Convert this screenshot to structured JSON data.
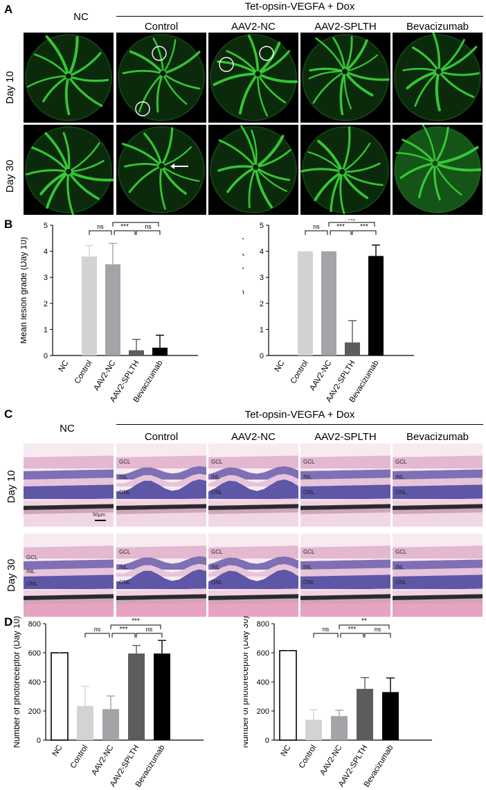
{
  "panels": {
    "a": "A",
    "b": "B",
    "c": "C",
    "d": "D"
  },
  "headers": {
    "nc": "NC",
    "group": "Tet-opsin-VEGFA + Dox",
    "columns": [
      "Control",
      "AAV2-NC",
      "AAV2-SPLTH",
      "Bevacizumab"
    ]
  },
  "rows": {
    "day10": "Day 10",
    "day30": "Day 30"
  },
  "histology": {
    "layers": [
      "GCL",
      "INL",
      "ONL"
    ],
    "scale_label": "50μm"
  },
  "colors": {
    "fundus_green": "#39d23a",
    "nc_bar": "#ffffff",
    "control_bar": "#d3d3d3",
    "aav2nc_bar": "#a3a3a8",
    "splth_bar": "#5c5c5c",
    "beva_bar": "#000000"
  },
  "chart_data": [
    {
      "type": "bar",
      "ylabel": "Mean lesion grade (Day 10)",
      "categories": [
        "NC",
        "Control",
        "AAV2-NC",
        "AAV2-SPLTH",
        "Bevacizumab"
      ],
      "values": [
        0,
        3.8,
        3.5,
        0.2,
        0.3
      ],
      "errors": [
        0,
        0.42,
        0.8,
        0.42,
        0.48
      ],
      "ylim": [
        0,
        5
      ],
      "yticks": [
        "0",
        "1",
        "2",
        "3",
        "4",
        "5"
      ],
      "sig": [
        {
          "from": 1,
          "to": 2,
          "label": "ns"
        },
        {
          "from": 2,
          "to": 4,
          "label": "***"
        },
        {
          "from": 2,
          "to": 3,
          "label": "***"
        },
        {
          "from": 3,
          "to": 4,
          "label": "ns"
        }
      ]
    },
    {
      "type": "bar",
      "ylabel": "Mean lesion grade (Day 30)",
      "categories": [
        "NC",
        "Control",
        "AAV2-NC",
        "AAV2-SPLTH",
        "Bevacizumab"
      ],
      "values": [
        0,
        4.0,
        4.0,
        0.5,
        3.82
      ],
      "errors": [
        0,
        0,
        0,
        0.84,
        0.42
      ],
      "ylim": [
        0,
        5
      ],
      "yticks": [
        "0",
        "1",
        "2",
        "3",
        "4",
        "5"
      ],
      "sig": [
        {
          "from": 1,
          "to": 2,
          "label": "ns"
        },
        {
          "from": 2,
          "to": 4,
          "label": "ns"
        },
        {
          "from": 2,
          "to": 3,
          "label": "***"
        },
        {
          "from": 3,
          "to": 4,
          "label": "***"
        }
      ]
    },
    {
      "type": "bar",
      "ylabel": "Number of photoreceptor  (Day 10)",
      "categories": [
        "NC",
        "Control",
        "AAV2-NC",
        "AAV2-SPLTH",
        "Bevacizumab"
      ],
      "values": [
        600,
        235,
        213,
        595,
        595
      ],
      "errors": [
        68,
        135,
        90,
        55,
        90
      ],
      "ylim": [
        0,
        800
      ],
      "yticks": [
        "0",
        "200",
        "400",
        "600",
        "800"
      ],
      "sig": [
        {
          "from": 1,
          "to": 2,
          "label": "ns"
        },
        {
          "from": 2,
          "to": 4,
          "label": "***"
        },
        {
          "from": 2,
          "to": 3,
          "label": "***"
        },
        {
          "from": 3,
          "to": 4,
          "label": "ns"
        }
      ]
    },
    {
      "type": "bar",
      "ylabel": "Number of photoreceptor  (Day 30)",
      "categories": [
        "NC",
        "Control",
        "AAV2-NC",
        "AAV2-SPLTH",
        "Bevacizumab"
      ],
      "values": [
        615,
        140,
        165,
        352,
        330
      ],
      "errors": [
        60,
        68,
        40,
        78,
        97
      ],
      "ylim": [
        0,
        800
      ],
      "yticks": [
        "0",
        "200",
        "400",
        "600",
        "800"
      ],
      "sig": [
        {
          "from": 1,
          "to": 2,
          "label": "ns"
        },
        {
          "from": 2,
          "to": 4,
          "label": "**"
        },
        {
          "from": 2,
          "to": 3,
          "label": "***"
        },
        {
          "from": 3,
          "to": 4,
          "label": "ns"
        }
      ]
    }
  ]
}
